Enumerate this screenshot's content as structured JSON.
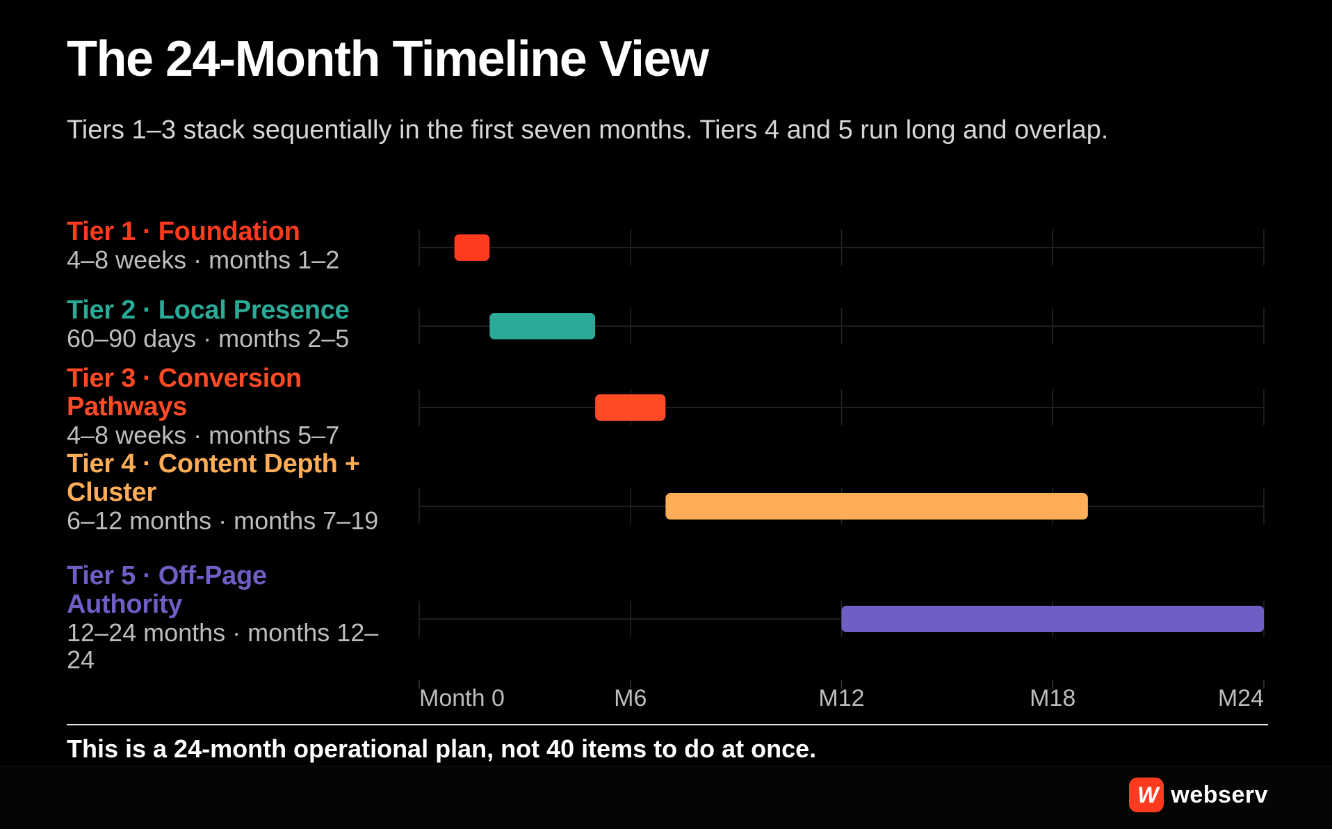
{
  "header": {
    "title": "The 24-Month Timeline View",
    "subtitle": "Tiers 1–3 stack sequentially in the first seven months. Tiers 4 and 5 run long and overlap."
  },
  "tiers": [
    {
      "name": "Tier 1 · Foundation",
      "desc": "4–8 weeks · months 1–2",
      "color": "#ff3b1f"
    },
    {
      "name": "Tier 2 · Local Presence",
      "desc": "60–90 days · months 2–5",
      "color": "#2bab97"
    },
    {
      "name": "Tier 3 · Conversion Pathways",
      "desc": "4–8 weeks · months 5–7",
      "color": "#ff4a26"
    },
    {
      "name": "Tier 4 · Content Depth + Cluster",
      "desc": "6–12 months · months 7–19",
      "color": "#ffad56"
    },
    {
      "name": "Tier 5 · Off-Page Authority",
      "desc": "12–24 months · months 12–24",
      "color": "#6f5ec4"
    }
  ],
  "chart_data": {
    "type": "gantt",
    "x_axis": {
      "range": [
        0,
        24
      ],
      "ticks": [
        0,
        6,
        12,
        18,
        24
      ],
      "tick_labels": [
        "Month 0",
        "M6",
        "M12",
        "M18",
        "M24"
      ]
    },
    "grid": true,
    "bars": [
      {
        "label": "Tier 1 · Foundation",
        "start": 1,
        "end": 2
      },
      {
        "label": "Tier 2 · Local Presence",
        "start": 2,
        "end": 5
      },
      {
        "label": "Tier 3 · Conversion Pathways",
        "start": 5,
        "end": 7
      },
      {
        "label": "Tier 4 · Content Depth + Cluster",
        "start": 7,
        "end": 19
      },
      {
        "label": "Tier 5 · Off-Page Authority",
        "start": 12,
        "end": 24
      }
    ]
  },
  "footnote": "This is a 24-month operational plan, not 40 items to do at once.",
  "brand": {
    "name": "webserv",
    "mark": "W"
  }
}
